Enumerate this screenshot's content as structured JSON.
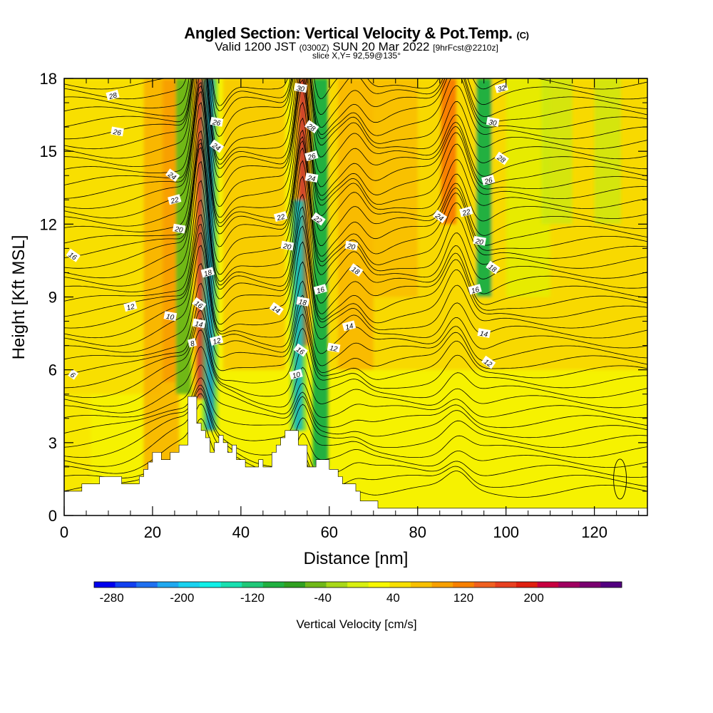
{
  "title": {
    "main": "Angled Section: Vertical Velocity & Pot.Temp.",
    "copyright": "(C)",
    "valid_prefix": "Valid 1200 JST",
    "valid_z": "(0300Z)",
    "valid_date": "SUN 20 Mar 2022",
    "forecast": "[9hrFcst@2210z]",
    "slice": "slice X,Y= 92,59@135°"
  },
  "chart_data": {
    "type": "heatmap",
    "title": "Angled Section: Vertical Velocity & Pot.Temp.",
    "xlabel": "Distance [nm]",
    "ylabel": "Height [Kft MSL]",
    "xlim": [
      0,
      132
    ],
    "ylim": [
      0,
      18
    ],
    "x_ticks": [
      0,
      20,
      40,
      60,
      80,
      100,
      120
    ],
    "y_ticks": [
      0,
      3,
      6,
      9,
      12,
      15,
      18
    ],
    "colorbar": {
      "label": "Vertical Velocity [cm/s]",
      "tick_labels": [
        "-280",
        "-200",
        "-120",
        "-40",
        "40",
        "120",
        "200"
      ],
      "tick_values": [
        -280,
        -200,
        -120,
        -40,
        40,
        120,
        200
      ],
      "colors": [
        "#0000ee",
        "#1240f0",
        "#1f70f0",
        "#20a8f0",
        "#18d2f0",
        "#10f0e8",
        "#18e0b0",
        "#20c878",
        "#20b040",
        "#30a020",
        "#70b818",
        "#a8d818",
        "#d8f010",
        "#f8f800",
        "#f8e000",
        "#f8c000",
        "#f8a000",
        "#f88000",
        "#f06020",
        "#e84020",
        "#e02010",
        "#c80040",
        "#a00060",
        "#7a0070",
        "#520080"
      ]
    },
    "vertical_velocity_features": [
      {
        "x": 31,
        "ymin": 4.8,
        "ymax": 18,
        "value": 240,
        "kind": "updraft"
      },
      {
        "x": 33,
        "ymin": 3.5,
        "ymax": 18,
        "value": -240,
        "kind": "downdraft"
      },
      {
        "x": 24,
        "ymin": 5.5,
        "ymax": 18,
        "value": 90,
        "kind": "updraft"
      },
      {
        "x": 27,
        "ymin": 5,
        "ymax": 18,
        "value": -60,
        "kind": "downdraft"
      },
      {
        "x": 54,
        "ymin": 7,
        "ymax": 18,
        "value": 240,
        "kind": "updraft"
      },
      {
        "x": 53,
        "ymin": 3.5,
        "ymax": 13,
        "value": -220,
        "kind": "downdraft"
      },
      {
        "x": 58,
        "ymin": 2,
        "ymax": 18,
        "value": -100,
        "kind": "downdraft"
      },
      {
        "x": 87,
        "ymin": 12,
        "ymax": 18,
        "value": 130,
        "kind": "updraft"
      },
      {
        "x": 95,
        "ymin": 9,
        "ymax": 18,
        "value": -90,
        "kind": "downdraft"
      }
    ],
    "potential_temperature_labels": [
      {
        "x": 11,
        "y": 17.3,
        "text": "28"
      },
      {
        "x": 12,
        "y": 15.8,
        "text": "26"
      },
      {
        "x": 24.5,
        "y": 14,
        "text": "24"
      },
      {
        "x": 25,
        "y": 13,
        "text": "22"
      },
      {
        "x": 26,
        "y": 11.8,
        "text": "20"
      },
      {
        "x": 2,
        "y": 10.7,
        "text": "16"
      },
      {
        "x": 15,
        "y": 8.6,
        "text": "12"
      },
      {
        "x": 24,
        "y": 8.2,
        "text": "10"
      },
      {
        "x": 2,
        "y": 5.8,
        "text": "6"
      },
      {
        "x": 29,
        "y": 7.1,
        "text": "8"
      },
      {
        "x": 30.5,
        "y": 7.9,
        "text": "14"
      },
      {
        "x": 30.5,
        "y": 8.7,
        "text": "16"
      },
      {
        "x": 32.5,
        "y": 10,
        "text": "18"
      },
      {
        "x": 34.5,
        "y": 16.2,
        "text": "26"
      },
      {
        "x": 34.5,
        "y": 15.2,
        "text": "24"
      },
      {
        "x": 34.5,
        "y": 7.2,
        "text": "12"
      },
      {
        "x": 53.5,
        "y": 17.6,
        "text": "30"
      },
      {
        "x": 56,
        "y": 16,
        "text": "28"
      },
      {
        "x": 56,
        "y": 14.8,
        "text": "26"
      },
      {
        "x": 56,
        "y": 13.9,
        "text": "24"
      },
      {
        "x": 57.5,
        "y": 12.2,
        "text": "22"
      },
      {
        "x": 49,
        "y": 12.3,
        "text": "22"
      },
      {
        "x": 50.5,
        "y": 11.1,
        "text": "20"
      },
      {
        "x": 48,
        "y": 8.5,
        "text": "14"
      },
      {
        "x": 58,
        "y": 9.3,
        "text": "16"
      },
      {
        "x": 54,
        "y": 8.8,
        "text": "18"
      },
      {
        "x": 53.5,
        "y": 6.8,
        "text": "16"
      },
      {
        "x": 52.5,
        "y": 5.8,
        "text": "10"
      },
      {
        "x": 65,
        "y": 11.1,
        "text": "20"
      },
      {
        "x": 66,
        "y": 10.1,
        "text": "18"
      },
      {
        "x": 64.5,
        "y": 7.8,
        "text": "14"
      },
      {
        "x": 61,
        "y": 6.9,
        "text": "12"
      },
      {
        "x": 85,
        "y": 12.3,
        "text": "24"
      },
      {
        "x": 91,
        "y": 12.5,
        "text": "22"
      },
      {
        "x": 94,
        "y": 11.3,
        "text": "20"
      },
      {
        "x": 97,
        "y": 10.2,
        "text": "18"
      },
      {
        "x": 93,
        "y": 9.3,
        "text": "16"
      },
      {
        "x": 95,
        "y": 7.5,
        "text": "14"
      },
      {
        "x": 96,
        "y": 6.3,
        "text": "12"
      },
      {
        "x": 99,
        "y": 17.6,
        "text": "32"
      },
      {
        "x": 97,
        "y": 16.2,
        "text": "30"
      },
      {
        "x": 99,
        "y": 14.7,
        "text": "28"
      },
      {
        "x": 96,
        "y": 13.8,
        "text": "26"
      }
    ],
    "terrain": [
      [
        0,
        1
      ],
      [
        4,
        1
      ],
      [
        4,
        1.3
      ],
      [
        8,
        1.3
      ],
      [
        8,
        1.6
      ],
      [
        13,
        1.6
      ],
      [
        13,
        1.3
      ],
      [
        17,
        1.3
      ],
      [
        17,
        1.6
      ],
      [
        18,
        1.6
      ],
      [
        18,
        1.9
      ],
      [
        19,
        1.9
      ],
      [
        19,
        2.2
      ],
      [
        20,
        2.2
      ],
      [
        20,
        2.6
      ],
      [
        22,
        2.6
      ],
      [
        22,
        2.3
      ],
      [
        24,
        2.3
      ],
      [
        24,
        2.6
      ],
      [
        26,
        2.6
      ],
      [
        26,
        2.9
      ],
      [
        28,
        2.9
      ],
      [
        28,
        4.9
      ],
      [
        30,
        4.9
      ],
      [
        30,
        3.8
      ],
      [
        31,
        3.8
      ],
      [
        31,
        3.5
      ],
      [
        32,
        3.5
      ],
      [
        32,
        3.2
      ],
      [
        33,
        3.2
      ],
      [
        33,
        2.6
      ],
      [
        34,
        2.6
      ],
      [
        34,
        3
      ],
      [
        35,
        3
      ],
      [
        35,
        3.3
      ],
      [
        36,
        3.3
      ],
      [
        36,
        3
      ],
      [
        37,
        3
      ],
      [
        37,
        2.6
      ],
      [
        38,
        2.6
      ],
      [
        38,
        2.9
      ],
      [
        39,
        2.9
      ],
      [
        39,
        2.3
      ],
      [
        41,
        2.3
      ],
      [
        41,
        2
      ],
      [
        44,
        2
      ],
      [
        44,
        2.3
      ],
      [
        45,
        2.3
      ],
      [
        45,
        2
      ],
      [
        47,
        2
      ],
      [
        47,
        2.6
      ],
      [
        48,
        2.6
      ],
      [
        48,
        2.9
      ],
      [
        49,
        2.9
      ],
      [
        49,
        3.2
      ],
      [
        50,
        3.2
      ],
      [
        50,
        3.5
      ],
      [
        53,
        3.5
      ],
      [
        53,
        2.9
      ],
      [
        55,
        2.9
      ],
      [
        55,
        2
      ],
      [
        57,
        2
      ],
      [
        57,
        2.3
      ],
      [
        60,
        2.3
      ],
      [
        60,
        1.9
      ],
      [
        62,
        1.9
      ],
      [
        62,
        1.6
      ],
      [
        63,
        1.6
      ],
      [
        63,
        1.3
      ],
      [
        66,
        1.3
      ],
      [
        66,
        1
      ],
      [
        67,
        1
      ],
      [
        67,
        0.6
      ],
      [
        71,
        0.6
      ],
      [
        71,
        0.3
      ],
      [
        132,
        0.3
      ],
      [
        132,
        0
      ],
      [
        0,
        0
      ]
    ]
  }
}
